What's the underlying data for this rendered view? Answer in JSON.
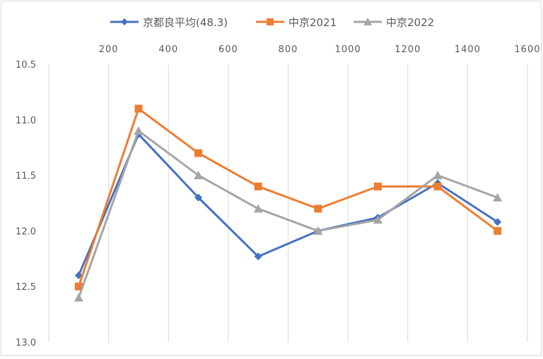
{
  "chart_data": {
    "type": "line",
    "x_axis": {
      "position": "top",
      "range": [
        0,
        1600
      ],
      "ticks": [
        200,
        400,
        600,
        800,
        1000,
        1200,
        1400,
        1600
      ],
      "grid": true
    },
    "y_axis": {
      "reversed": true,
      "range": [
        10.5,
        13.0
      ],
      "ticks": [
        "10.5",
        "11.0",
        "11.5",
        "12.0",
        "12.5",
        "13.0"
      ],
      "grid": false
    },
    "legend_position": "top",
    "series": [
      {
        "name": "京都良平均(48.3)",
        "color": "#4472c4",
        "marker": "diamond",
        "x": [
          100,
          300,
          500,
          700,
          900,
          1100,
          1300,
          1500
        ],
        "y": [
          12.4,
          11.13,
          11.7,
          12.23,
          12.0,
          11.88,
          11.57,
          11.92
        ]
      },
      {
        "name": "中京2021",
        "color": "#ed7d31",
        "marker": "square",
        "x": [
          100,
          300,
          500,
          700,
          900,
          1100,
          1300,
          1500
        ],
        "y": [
          12.5,
          10.9,
          11.3,
          11.6,
          11.8,
          11.6,
          11.6,
          12.0
        ]
      },
      {
        "name": "中京2022",
        "color": "#a5a5a5",
        "marker": "triangle",
        "x": [
          100,
          300,
          500,
          700,
          900,
          1100,
          1300,
          1500
        ],
        "y": [
          12.6,
          11.1,
          11.5,
          11.8,
          12.0,
          11.9,
          11.5,
          11.7
        ]
      }
    ]
  }
}
